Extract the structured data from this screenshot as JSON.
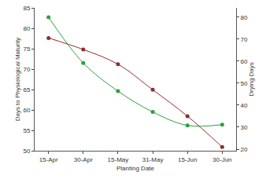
{
  "chart_data": {
    "type": "line",
    "x_label": "Planting Date",
    "y_label": "Days to Physiological Maturity",
    "y2_label": "Drying Days",
    "categories": [
      "15-Apr",
      "30-Apr",
      "15-May",
      "31-May",
      "15-Jun",
      "30-Jun"
    ],
    "series": [
      {
        "color": "#2e9e3e",
        "marker": "circle",
        "values": [
          82.7,
          71.5,
          64.6,
          59.5,
          56.2,
          56.4
        ]
      },
      {
        "color": "#8b2f2f",
        "marker": "circle",
        "axis": "y2",
        "values": [
          70.5,
          65.3,
          58.6,
          47,
          35,
          21
        ]
      }
    ],
    "ylim": [
      50,
      85
    ],
    "yticks": [
      50,
      55,
      60,
      65,
      70,
      75,
      80,
      85
    ],
    "y2lim": [
      19.3,
      84.2
    ],
    "y2ticks": [
      20,
      30,
      40,
      50,
      60,
      70,
      80
    ],
    "grid": false
  }
}
